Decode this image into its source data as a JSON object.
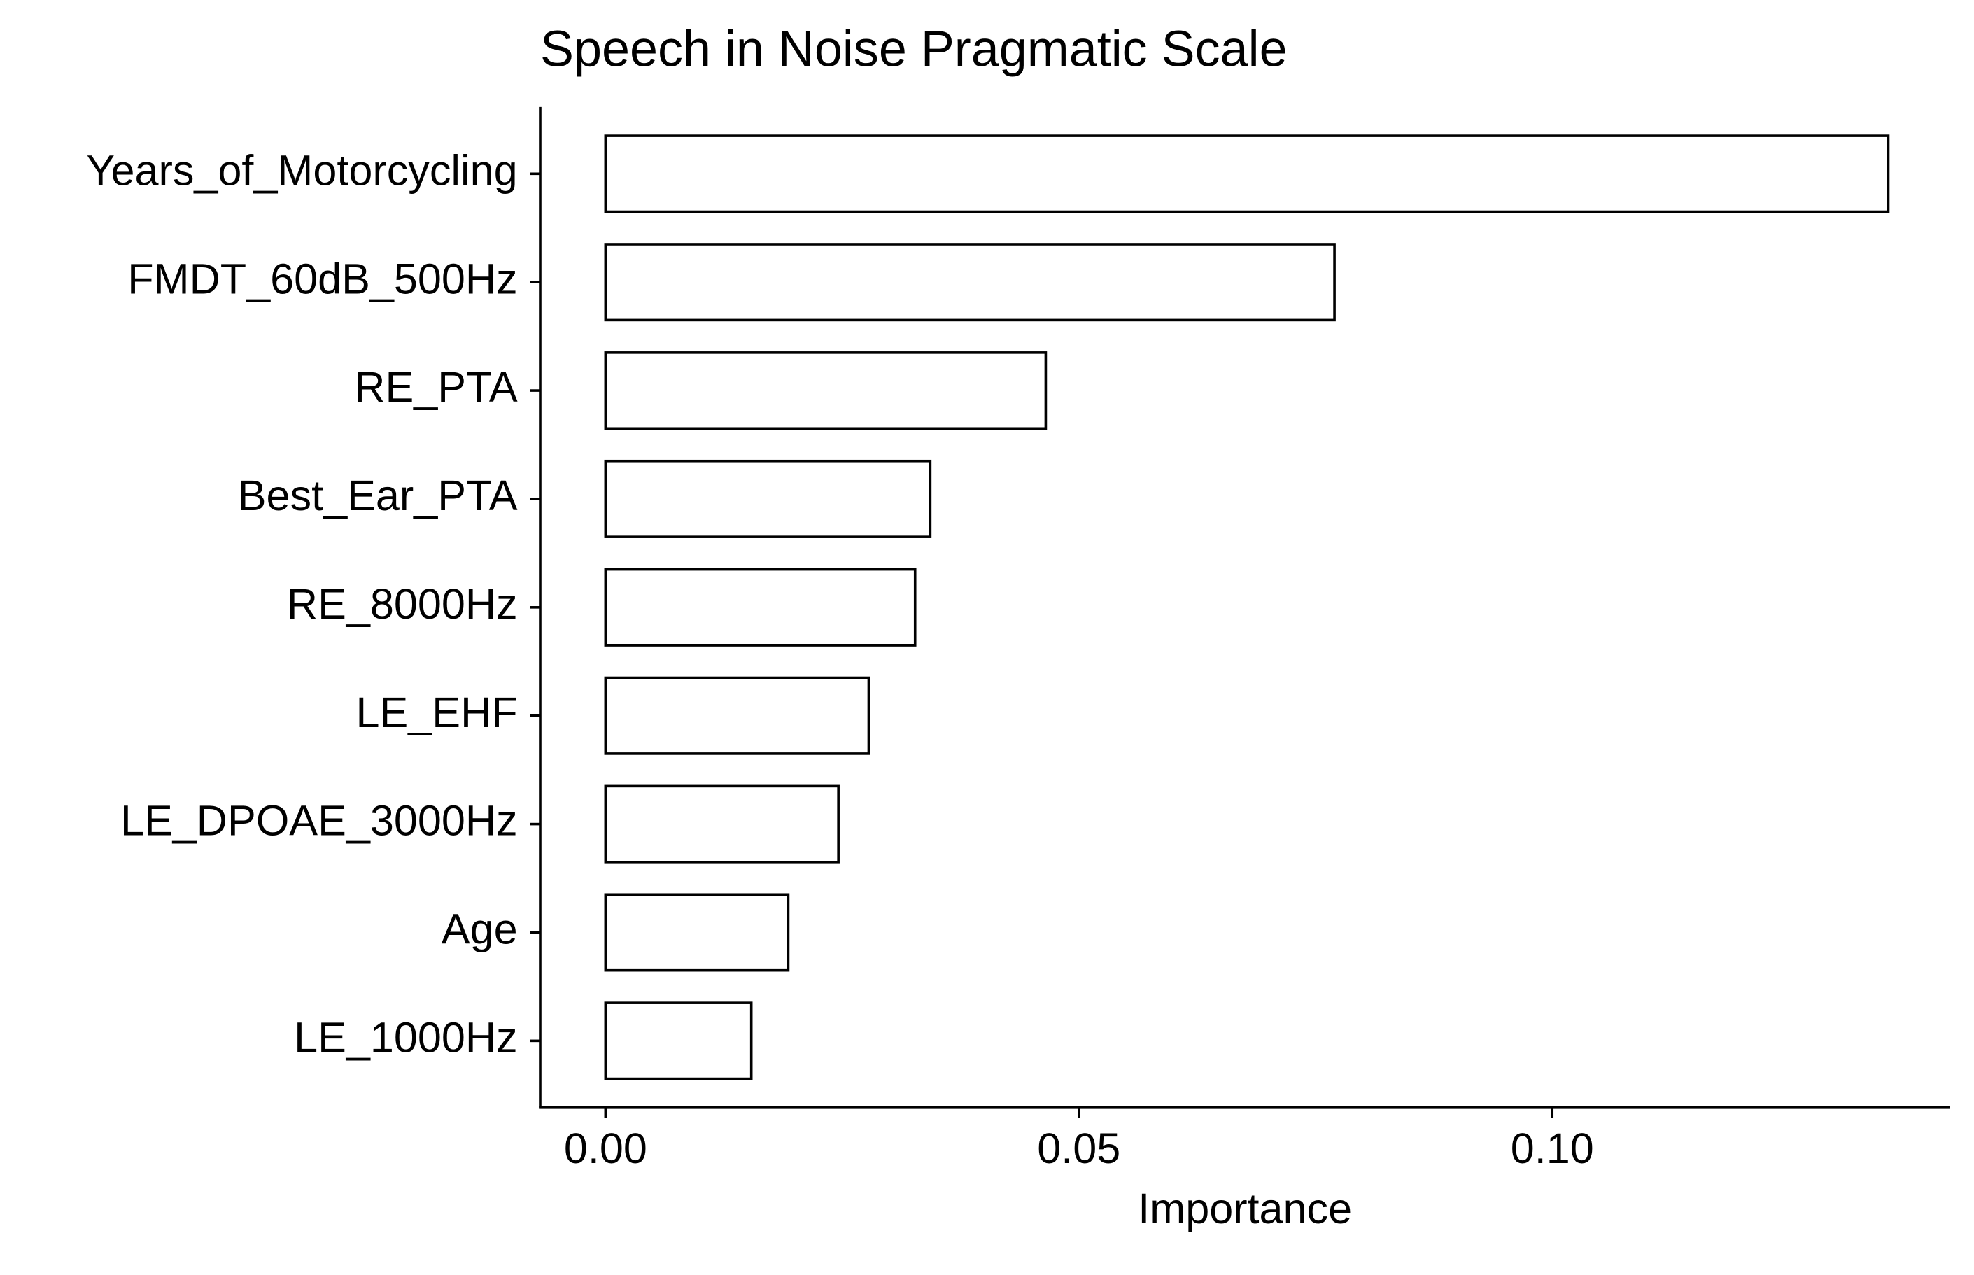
{
  "chart_data": {
    "type": "bar",
    "orientation": "horizontal",
    "title": "Speech in Noise Pragmatic Scale",
    "x_label": "Importance",
    "categories": [
      "Years_of_Motorcycling",
      "FMDT_60dB_500Hz",
      "RE_PTA",
      "Best_Ear_PTA",
      "RE_8000Hz",
      "LE_EHF",
      "LE_DPOAE_3000Hz",
      "Age",
      "LE_1000Hz"
    ],
    "values": [
      0.1355,
      0.077,
      0.0465,
      0.0343,
      0.0327,
      0.0278,
      0.0246,
      0.0193,
      0.0154
    ],
    "color": "#ffffff",
    "edgecolor": "#000000",
    "xlim": [
      -0.0069,
      0.142
    ],
    "xticks": [
      {
        "value": 0,
        "label": "0.00"
      },
      0.05,
      {
        "value": 0.1,
        "label": "0.10"
      }
    ],
    "grid": false
  }
}
